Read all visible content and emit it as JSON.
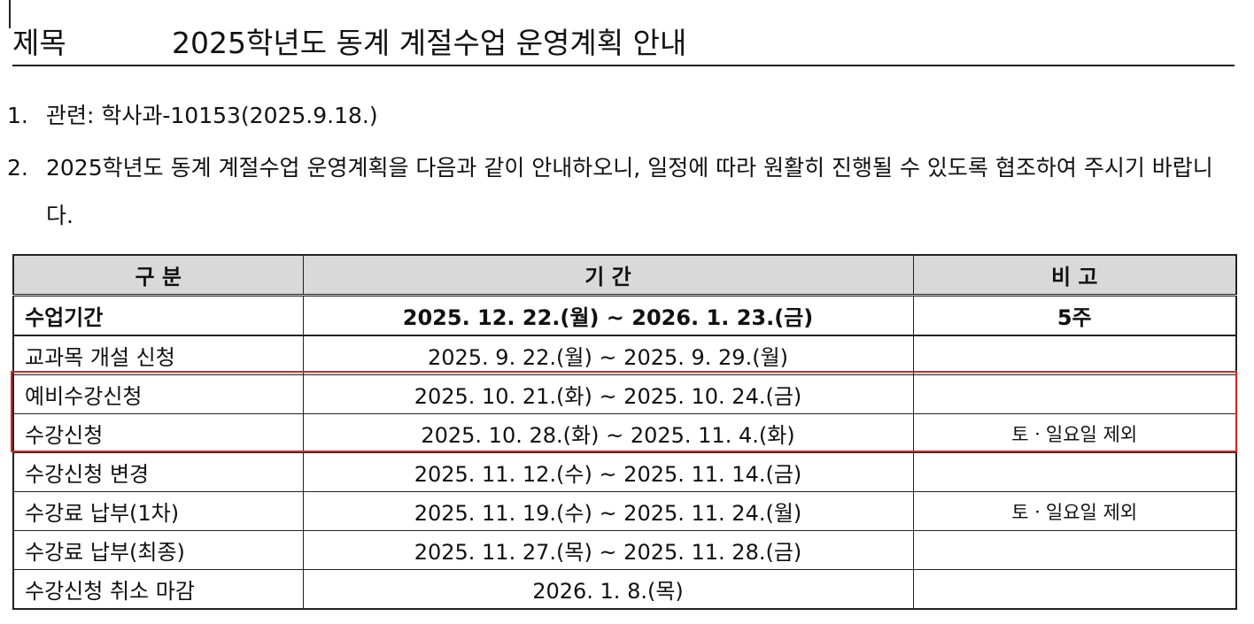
{
  "header": {
    "label": "제목",
    "title": "2025학년도 동계 계절수업 운영계획 안내"
  },
  "items": [
    {
      "number": "1.",
      "text": "관련: 학사과-10153(2025.9.18.)"
    },
    {
      "number": "2.",
      "text": "2025학년도 동계 계절수업 운영계획을 다음과 같이 안내하오니, 일정에 따라 원활히 진행될 수 있도록 협조하여 주시기 바랍니다."
    }
  ],
  "table": {
    "columns": [
      "구 분",
      "기 간",
      "비 고"
    ],
    "rows": [
      {
        "category": "수업기간",
        "period": "2025. 12. 22.(월) ~ 2026. 1. 23.(금)",
        "note": "5주"
      },
      {
        "category": "교과목 개설 신청",
        "period": "2025. 9. 22.(월) ~ 2025. 9. 29.(월)"
      },
      {
        "category": "예비수강신청",
        "period": "2025. 10. 21.(화) ~ 2025. 10. 24.(금)"
      },
      {
        "category": "수강신청",
        "period": "2025. 10. 28.(화) ~ 2025. 11. 4.(화)",
        "note": "토ㆍ일요일 제외"
      },
      {
        "category": "수강신청 변경",
        "period": "2025. 11. 12.(수) ~ 2025. 11. 14.(금)"
      },
      {
        "category": "수강료 납부(1차)",
        "period": "2025. 11. 19.(수) ~ 2025. 11. 24.(월)",
        "note": "토ㆍ일요일 제외"
      },
      {
        "category": "수강료 납부(최종)",
        "period": "2025. 11. 27.(목) ~ 2025. 11. 28.(금)"
      },
      {
        "category": "수강신청 취소 마감",
        "period": "2026. 1. 8.(목)"
      }
    ]
  }
}
